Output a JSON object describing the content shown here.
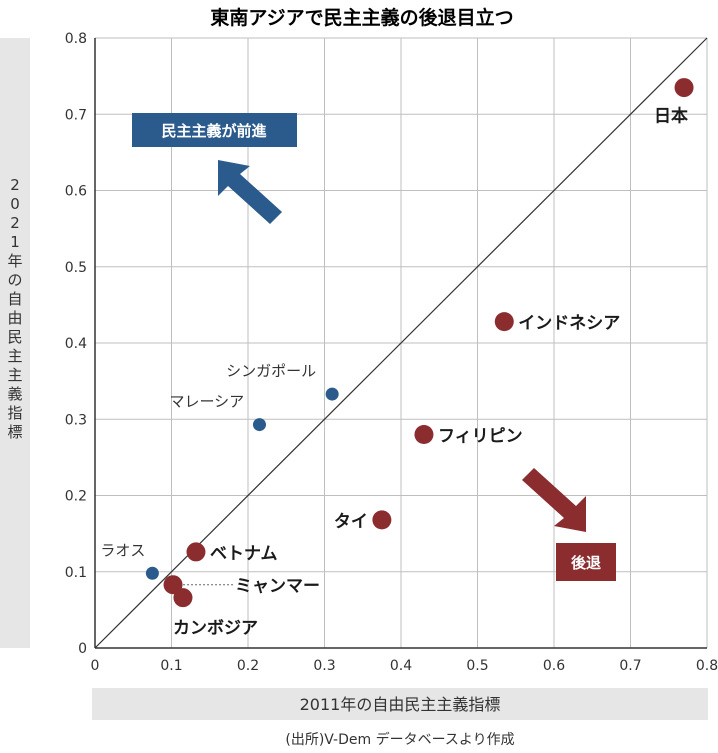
{
  "chart_data": {
    "type": "scatter",
    "title": "東南アジアで民主主義の後退目立つ",
    "xlabel": "2011年の自由民主主義指標",
    "ylabel": "2021年の自由民主主義指標",
    "source": "(出所)V-Dem データベースより作成",
    "xlim": [
      0,
      0.8
    ],
    "ylim": [
      0,
      0.8
    ],
    "xticks": [
      "0",
      "0.1",
      "0.2",
      "0.3",
      "0.4",
      "0.5",
      "0.6",
      "0.7",
      "0.8"
    ],
    "yticks": [
      "0",
      "0.1",
      "0.2",
      "0.3",
      "0.4",
      "0.5",
      "0.6",
      "0.7",
      "0.8"
    ],
    "grid": true,
    "diagonal": true,
    "colors": {
      "decline": "#8b2d2f",
      "advance": "#2b5a8c",
      "grid": "#bfbfbf",
      "axis_band": "#e6e6e6"
    },
    "points": [
      {
        "name": "日本",
        "x": 0.77,
        "y": 0.735,
        "group": "decline"
      },
      {
        "name": "インドネシア",
        "x": 0.535,
        "y": 0.428,
        "group": "decline"
      },
      {
        "name": "フィリピン",
        "x": 0.43,
        "y": 0.28,
        "group": "decline"
      },
      {
        "name": "タイ",
        "x": 0.375,
        "y": 0.168,
        "group": "decline"
      },
      {
        "name": "ベトナム",
        "x": 0.132,
        "y": 0.126,
        "group": "decline"
      },
      {
        "name": "ミャンマー",
        "x": 0.102,
        "y": 0.083,
        "group": "decline"
      },
      {
        "name": "カンボジア",
        "x": 0.115,
        "y": 0.066,
        "group": "decline"
      },
      {
        "name": "シンガポール",
        "x": 0.31,
        "y": 0.333,
        "group": "advance"
      },
      {
        "name": "マレーシア",
        "x": 0.215,
        "y": 0.293,
        "group": "advance"
      },
      {
        "name": "ラオス",
        "x": 0.075,
        "y": 0.098,
        "group": "advance"
      }
    ],
    "annotations": {
      "advance_label": "民主主義が前進",
      "decline_label": "後退"
    }
  }
}
